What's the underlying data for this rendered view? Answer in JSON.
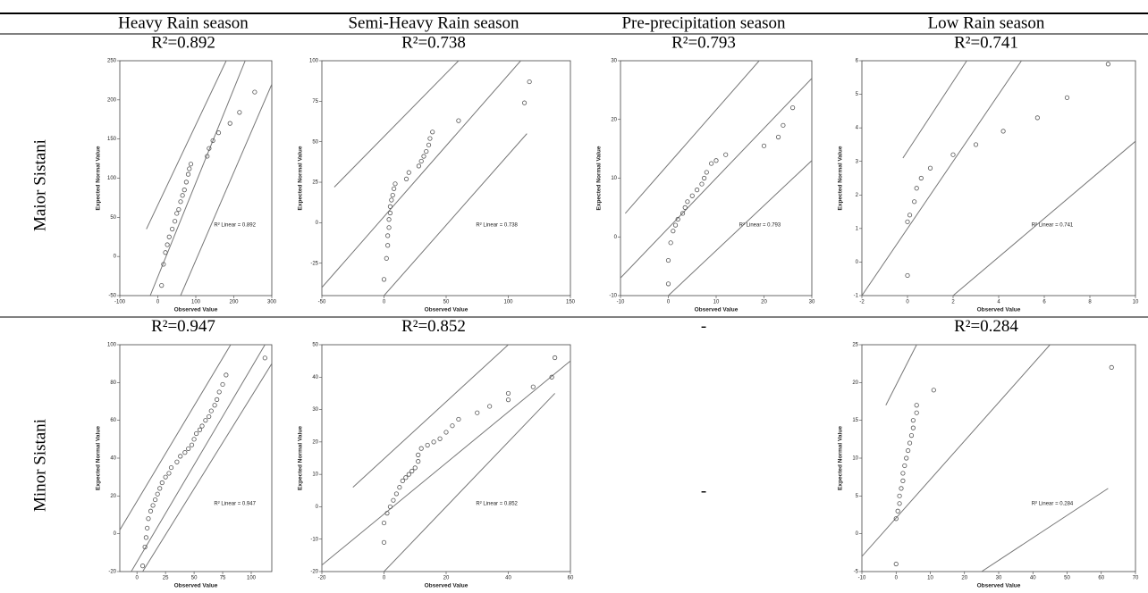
{
  "columns": [
    "Heavy Rain season",
    "Semi-Heavy Rain season",
    "Pre-precipitation season",
    "Low Rain season"
  ],
  "rows": [
    {
      "label": "Maior Sistani",
      "r2": [
        "R²=0.892",
        "R²=0.738",
        "R²=0.793",
        "R²=0.741"
      ],
      "plots": [
        {
          "type": "scatter",
          "y_label": "Expected Normal Value",
          "x_label": "Observed Value",
          "annotation": "R² Linear = 0.892",
          "xlim": [
            -100,
            300
          ],
          "xticks": [
            -100,
            0,
            100,
            200,
            300
          ],
          "ylim": [
            -50,
            250
          ],
          "yticks": [
            -50,
            0,
            50,
            100,
            150,
            200,
            250
          ],
          "x": [
            10,
            15,
            20,
            25,
            30,
            38,
            45,
            50,
            55,
            60,
            65,
            70,
            75,
            80,
            83,
            87,
            130,
            135,
            145,
            160,
            190,
            215,
            255
          ],
          "y": [
            -37,
            -10,
            5,
            15,
            25,
            35,
            45,
            55,
            60,
            70,
            78,
            85,
            95,
            105,
            112,
            118,
            128,
            138,
            148,
            158,
            170,
            184,
            210
          ],
          "lines": [
            [
              -30,
              35,
              180,
              250
            ],
            [
              -20,
              -50,
              230,
              250
            ],
            [
              60,
              -50,
              300,
              220
            ]
          ]
        },
        {
          "type": "scatter",
          "y_label": "Expected Normal Value",
          "x_label": "Observed Value",
          "annotation": "R² Linear = 0.738",
          "xlim": [
            -50,
            150
          ],
          "xticks": [
            -50,
            0,
            50,
            100,
            150
          ],
          "ylim": [
            -45,
            100
          ],
          "yticks": [
            -25,
            0,
            25,
            50,
            75,
            100
          ],
          "x": [
            0,
            2,
            3,
            3,
            4,
            4,
            5,
            5,
            6,
            7,
            8,
            9,
            18,
            20,
            28,
            30,
            32,
            34,
            36,
            37,
            39,
            60,
            113,
            117
          ],
          "y": [
            -35,
            -22,
            -14,
            -8,
            -3,
            2,
            6,
            10,
            14,
            17,
            21,
            24,
            27,
            31,
            35,
            38,
            41,
            44,
            48,
            52,
            56,
            63,
            74,
            87
          ],
          "lines": [
            [
              -40,
              22,
              60,
              100
            ],
            [
              -50,
              -40,
              110,
              100
            ],
            [
              0,
              -45,
              115,
              55
            ]
          ]
        },
        {
          "type": "scatter",
          "y_label": "Expected Normal Value",
          "x_label": "Observed Value",
          "annotation": "R² Linear = 0.793",
          "xlim": [
            -10,
            30
          ],
          "xticks": [
            -10,
            0,
            10,
            20,
            30
          ],
          "ylim": [
            -10,
            30
          ],
          "yticks": [
            -10,
            0,
            10,
            20,
            30
          ],
          "x": [
            0,
            0,
            0.5,
            1,
            1.5,
            2,
            3,
            3.5,
            4,
            5,
            6,
            7,
            7.5,
            8,
            9,
            10,
            12,
            20,
            23,
            24,
            26
          ],
          "y": [
            -8,
            -4,
            -1,
            1,
            2,
            3,
            4,
            5,
            6,
            7,
            8,
            9,
            10,
            11,
            12.5,
            13,
            14,
            15.5,
            17,
            19,
            22
          ],
          "lines": [
            [
              -9,
              4,
              19,
              30
            ],
            [
              -10,
              -7,
              30,
              27
            ],
            [
              0,
              -10,
              30,
              13
            ]
          ]
        },
        {
          "type": "scatter",
          "y_label": "Expected Normal Value",
          "x_label": "Observed Value",
          "annotation": "R² Linear = 0.741",
          "xlim": [
            -2,
            10
          ],
          "xticks": [
            -2,
            0,
            2,
            4,
            6,
            8,
            10
          ],
          "ylim": [
            -1,
            6
          ],
          "yticks": [
            -1,
            0,
            1,
            2,
            3,
            4,
            5,
            6
          ],
          "x": [
            0,
            0,
            0.1,
            0.3,
            0.4,
            0.6,
            1,
            2,
            3,
            4.2,
            5.7,
            7,
            8.8
          ],
          "y": [
            -0.4,
            1.2,
            1.4,
            1.8,
            2.2,
            2.5,
            2.8,
            3.2,
            3.5,
            3.9,
            4.3,
            4.9,
            5.9
          ],
          "lines": [
            [
              -0.2,
              3.1,
              2.6,
              6
            ],
            [
              -2,
              -1,
              5,
              6
            ],
            [
              2,
              -1,
              10,
              3.6
            ]
          ]
        }
      ]
    },
    {
      "label": "Minor Sistani",
      "r2": [
        "R²=0.947",
        "R²=0.852",
        "-",
        "R²=0.284"
      ],
      "plots": [
        {
          "type": "scatter",
          "y_label": "Expected Normal Value",
          "x_label": "Observed Value",
          "annotation": "R² Linear = 0.947",
          "xlim": [
            -15,
            118
          ],
          "xticks": [
            0,
            25,
            50,
            75,
            100
          ],
          "ylim": [
            -20,
            100
          ],
          "yticks": [
            -20,
            0,
            20,
            40,
            60,
            80,
            100
          ],
          "x": [
            5,
            7,
            8,
            9,
            10,
            12,
            14,
            16,
            18,
            20,
            22,
            25,
            28,
            30,
            35,
            38,
            42,
            45,
            48,
            50,
            52,
            55,
            57,
            60,
            63,
            65,
            68,
            70,
            72,
            75,
            78,
            112
          ],
          "y": [
            -17,
            -7,
            -2,
            3,
            8,
            12,
            15,
            18,
            21,
            24,
            27,
            30,
            32,
            35,
            38,
            41,
            43,
            45,
            47,
            50,
            53,
            55,
            57,
            60,
            62,
            65,
            68,
            71,
            75,
            79,
            84,
            93
          ],
          "lines": [
            [
              -15,
              2,
              82,
              100
            ],
            [
              -5,
              -20,
              112,
              100
            ],
            [
              5,
              -20,
              118,
              90
            ]
          ]
        },
        {
          "type": "scatter",
          "y_label": "Expected Normal Value",
          "x_label": "Observed Value",
          "annotation": "R² Linear = 0.852",
          "xlim": [
            -20,
            60
          ],
          "xticks": [
            -20,
            0,
            20,
            40,
            60
          ],
          "ylim": [
            -20,
            50
          ],
          "yticks": [
            -20,
            -10,
            0,
            10,
            20,
            30,
            40,
            50
          ],
          "x": [
            0,
            0,
            1,
            2,
            3,
            4,
            5,
            6,
            7,
            8,
            9,
            10,
            11,
            11,
            12,
            14,
            16,
            18,
            20,
            22,
            24,
            30,
            34,
            40,
            40,
            48,
            54,
            55
          ],
          "y": [
            -11,
            -5,
            -2,
            0,
            2,
            4,
            6,
            8,
            9,
            10,
            11,
            12,
            14,
            16,
            18,
            19,
            20,
            21,
            23,
            25,
            27,
            29,
            31,
            33,
            35,
            37,
            40,
            46
          ],
          "lines": [
            [
              -10,
              6,
              40,
              50
            ],
            [
              -20,
              -18,
              60,
              45
            ],
            [
              0,
              -20,
              55,
              35
            ]
          ]
        },
        "-",
        {
          "type": "scatter",
          "y_label": "Expected Normal Value",
          "x_label": "Observed Value",
          "annotation": "R² Linear = 0.284",
          "xlim": [
            -10,
            70
          ],
          "xticks": [
            -10,
            0,
            10,
            20,
            30,
            40,
            50,
            60,
            70
          ],
          "ylim": [
            -5,
            25
          ],
          "yticks": [
            -5,
            0,
            5,
            10,
            15,
            20,
            25
          ],
          "x": [
            0,
            0,
            0.5,
            1,
            1,
            1.5,
            2,
            2,
            2.5,
            3,
            3.5,
            4,
            4.5,
            5,
            5,
            6,
            6,
            11,
            63
          ],
          "y": [
            -4,
            2,
            3,
            4,
            5,
            6,
            7,
            8,
            9,
            10,
            11,
            12,
            13,
            14,
            15,
            16,
            17,
            19,
            22
          ],
          "lines": [
            [
              -3,
              17,
              6,
              25
            ],
            [
              -10,
              -3,
              45,
              25
            ],
            [
              25,
              -5,
              62,
              6
            ]
          ]
        }
      ]
    }
  ]
}
